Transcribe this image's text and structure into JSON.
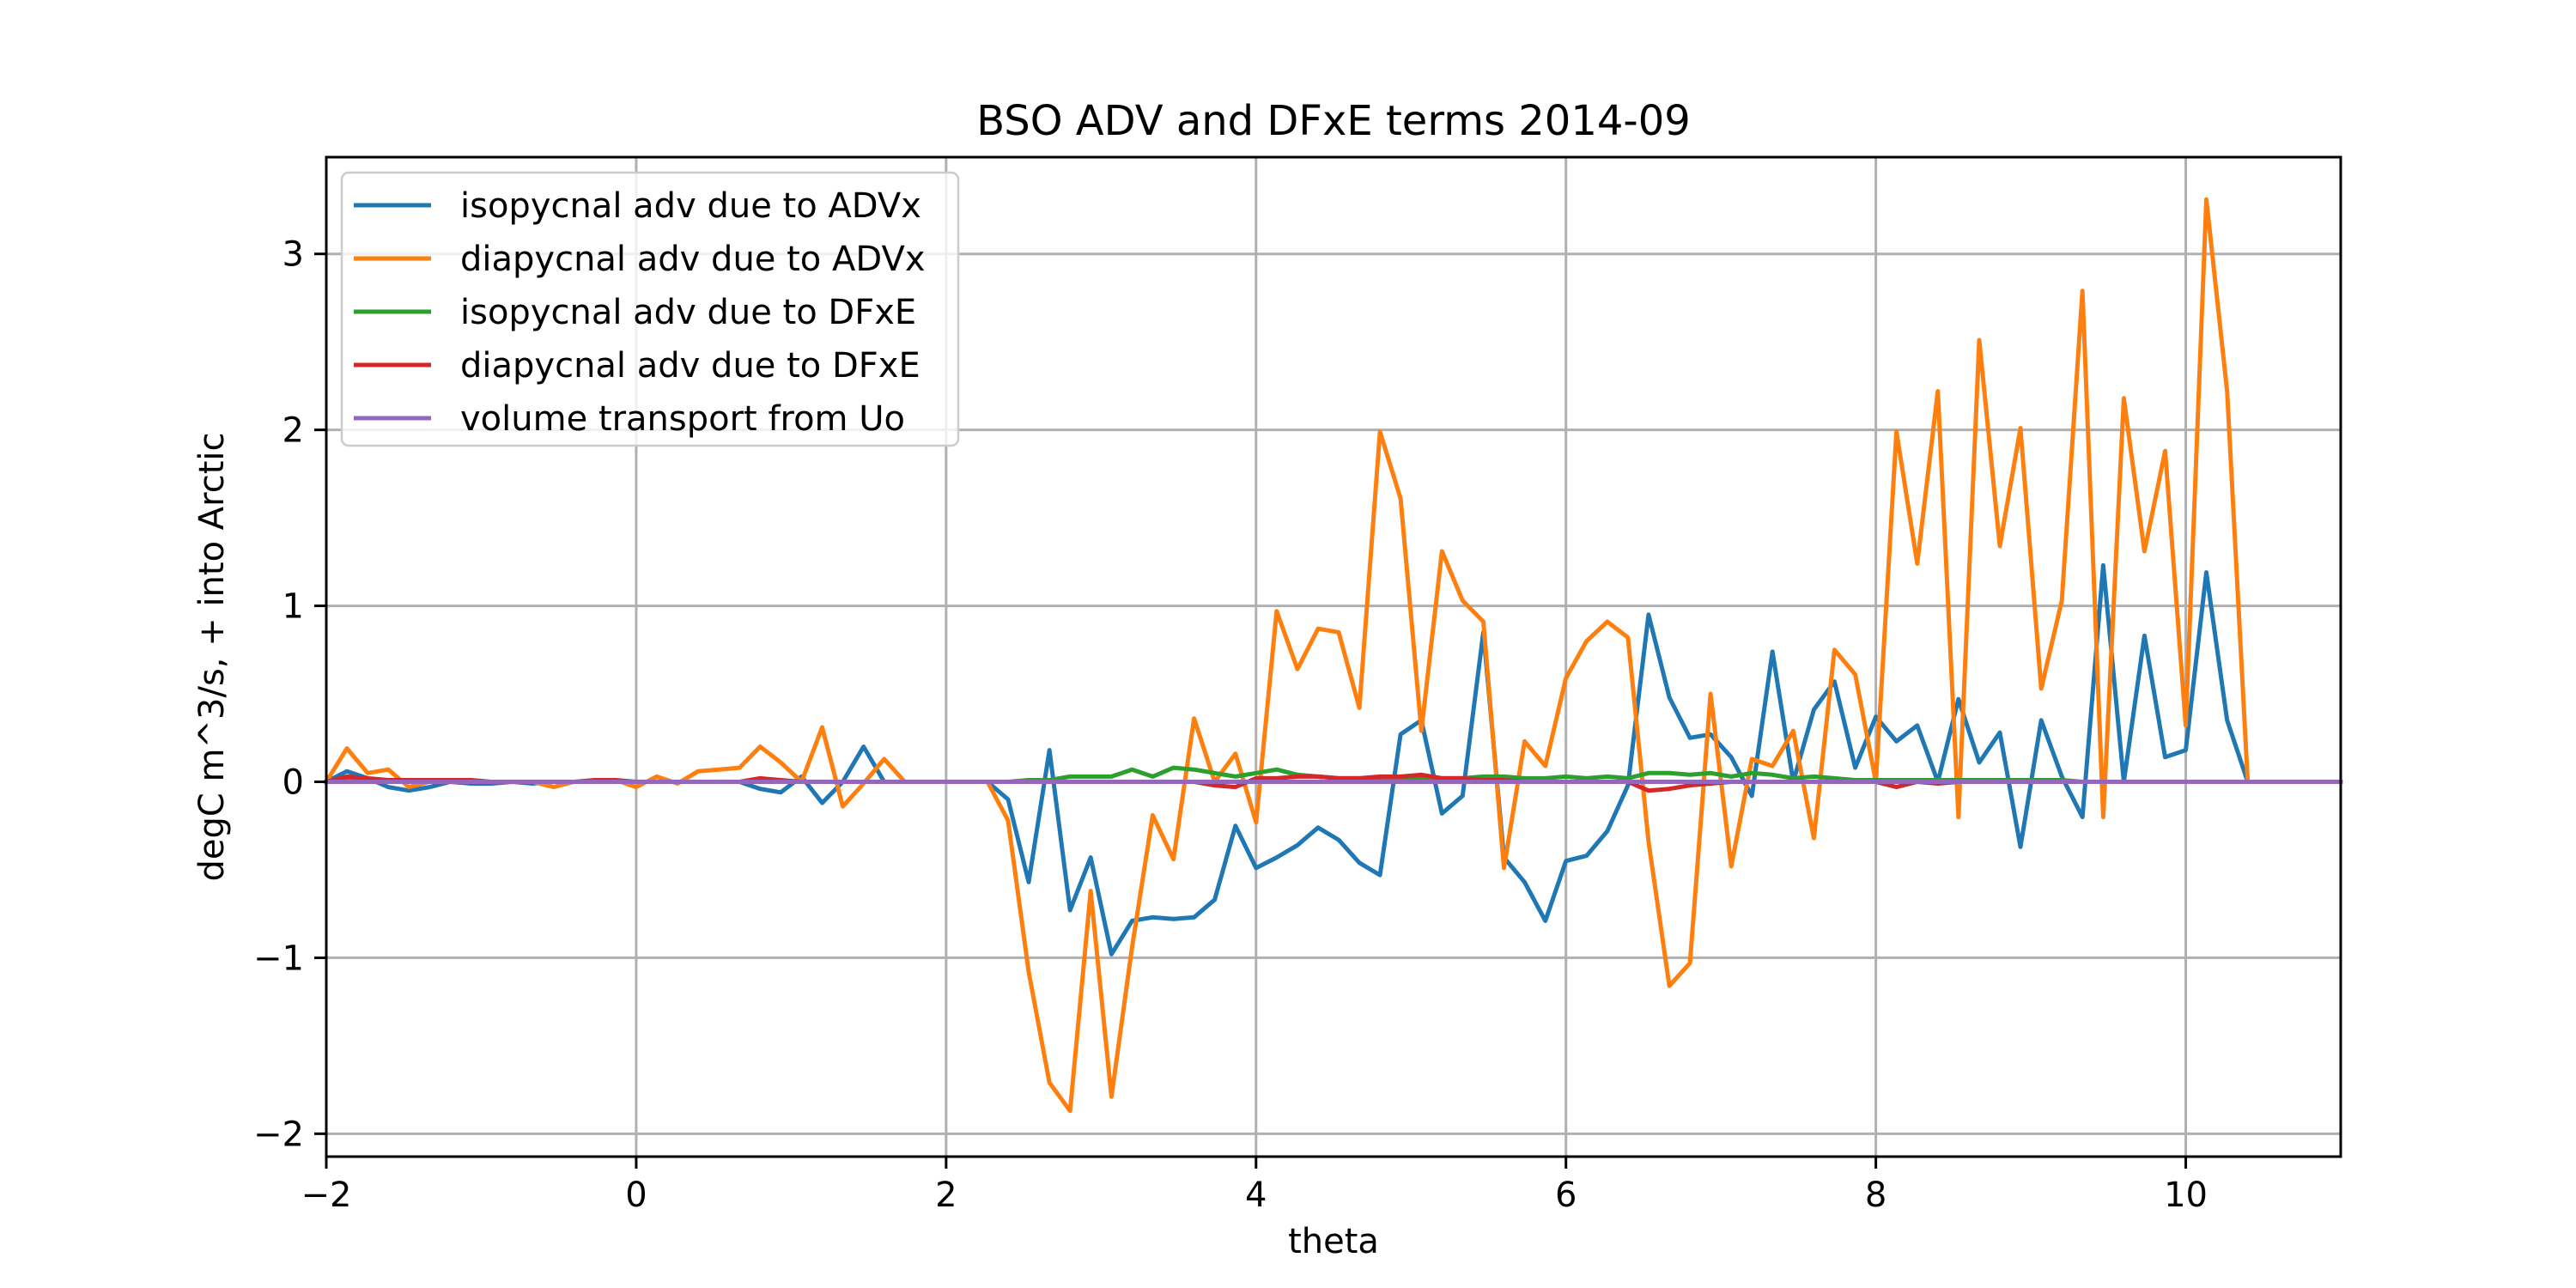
{
  "chart_data": {
    "type": "line",
    "title": "BSO ADV and DFxE terms 2014-09",
    "xlabel": "theta",
    "ylabel": "degC m^3/s, + into Arctic",
    "xlim": [
      -2,
      11
    ],
    "ylim": [
      -2.13,
      3.55
    ],
    "xticks": [
      -2,
      0,
      2,
      4,
      6,
      8,
      10
    ],
    "xtick_labels": [
      "−2",
      "0",
      "2",
      "4",
      "6",
      "8",
      "10"
    ],
    "yticks": [
      -2,
      -1,
      0,
      1,
      2,
      3
    ],
    "ytick_labels": [
      "−2",
      "−1",
      "0",
      "1",
      "2",
      "3"
    ],
    "grid": true,
    "legend_placement": "top-left",
    "x": [
      -2.0,
      -1.867,
      -1.733,
      -1.6,
      -1.467,
      -1.333,
      -1.2,
      -1.067,
      -0.933,
      -0.8,
      -0.667,
      -0.533,
      -0.4,
      -0.267,
      -0.133,
      0.0,
      0.133,
      0.267,
      0.4,
      0.533,
      0.667,
      0.8,
      0.933,
      1.067,
      1.2,
      1.333,
      1.467,
      1.6,
      1.733,
      1.867,
      2.0,
      2.133,
      2.267,
      2.4,
      2.533,
      2.667,
      2.8,
      2.933,
      3.067,
      3.2,
      3.333,
      3.467,
      3.6,
      3.733,
      3.867,
      4.0,
      4.133,
      4.267,
      4.4,
      4.533,
      4.667,
      4.8,
      4.933,
      5.067,
      5.2,
      5.333,
      5.467,
      5.6,
      5.733,
      5.867,
      6.0,
      6.133,
      6.267,
      6.4,
      6.533,
      6.667,
      6.8,
      6.933,
      7.067,
      7.2,
      7.333,
      7.467,
      7.6,
      7.733,
      7.867,
      8.0,
      8.133,
      8.267,
      8.4,
      8.533,
      8.667,
      8.8,
      8.933,
      9.067,
      9.2,
      9.333,
      9.467,
      9.6,
      9.733,
      9.867,
      10.0,
      10.133,
      10.267,
      10.4,
      10.533,
      10.667,
      10.8,
      10.933,
      11.0
    ],
    "series": [
      {
        "name": "isopycnal adv due to ADVx",
        "color": "#1f77b4",
        "values": [
          0.0,
          0.06,
          0.02,
          -0.03,
          -0.05,
          -0.03,
          0.0,
          -0.01,
          -0.01,
          0.0,
          -0.01,
          0.0,
          0.0,
          0.0,
          0.0,
          0.0,
          0.0,
          0.0,
          0.0,
          0.0,
          0.0,
          -0.04,
          -0.06,
          0.03,
          -0.12,
          0.0,
          0.2,
          0.0,
          0.0,
          0.0,
          0.0,
          0.0,
          0.0,
          -0.1,
          -0.57,
          0.18,
          -0.73,
          -0.43,
          -0.98,
          -0.79,
          -0.77,
          -0.78,
          -0.77,
          -0.67,
          -0.25,
          -0.49,
          -0.43,
          -0.36,
          -0.26,
          -0.33,
          -0.46,
          -0.53,
          0.27,
          0.35,
          -0.18,
          -0.08,
          0.85,
          -0.43,
          -0.57,
          -0.79,
          -0.45,
          -0.42,
          -0.28,
          -0.02,
          0.95,
          0.48,
          0.25,
          0.27,
          0.14,
          -0.08,
          0.74,
          0.0,
          0.41,
          0.57,
          0.08,
          0.37,
          0.23,
          0.32,
          0.0,
          0.47,
          0.11,
          0.28,
          -0.37,
          0.35,
          0.03,
          -0.2,
          1.23,
          0.0,
          0.83,
          0.14,
          0.18,
          1.19,
          0.35,
          0.0,
          0.0,
          0.0,
          0.0,
          0.0,
          0.0
        ]
      },
      {
        "name": "diapycnal adv due to ADVx",
        "color": "#ff7f0e",
        "values": [
          0.0,
          0.19,
          0.05,
          0.07,
          -0.03,
          0.0,
          0.0,
          0.0,
          0.0,
          0.0,
          0.0,
          -0.03,
          0.0,
          0.0,
          0.01,
          -0.03,
          0.03,
          -0.01,
          0.06,
          0.07,
          0.08,
          0.2,
          0.11,
          0.0,
          0.31,
          -0.14,
          -0.01,
          0.13,
          0.0,
          0.0,
          0.0,
          0.0,
          0.0,
          -0.22,
          -1.08,
          -1.71,
          -1.87,
          -0.62,
          -1.79,
          -0.94,
          -0.19,
          -0.44,
          0.36,
          0.0,
          0.16,
          -0.23,
          0.97,
          0.64,
          0.87,
          0.85,
          0.42,
          1.99,
          1.61,
          0.29,
          1.31,
          1.03,
          0.91,
          -0.49,
          0.23,
          0.09,
          0.59,
          0.8,
          0.91,
          0.82,
          -0.34,
          -1.16,
          -1.03,
          0.5,
          -0.48,
          0.13,
          0.09,
          0.29,
          -0.32,
          0.75,
          0.61,
          0.0,
          1.99,
          1.24,
          2.22,
          -0.2,
          2.51,
          1.34,
          2.01,
          0.53,
          1.03,
          2.79,
          -0.2,
          2.18,
          1.31,
          1.88,
          0.32,
          3.31,
          2.22,
          0.0,
          0.0,
          0.0,
          0.0,
          0.0,
          0.0
        ]
      },
      {
        "name": "isopycnal adv due to DFxE",
        "color": "#2ca02c",
        "values": [
          0.0,
          0.01,
          0.01,
          0.0,
          0.0,
          0.0,
          0.0,
          0.0,
          0.0,
          0.0,
          0.0,
          0.0,
          0.0,
          0.0,
          0.0,
          0.0,
          0.0,
          0.0,
          0.0,
          0.0,
          0.0,
          0.0,
          0.0,
          0.0,
          0.0,
          0.0,
          0.0,
          0.0,
          0.0,
          0.0,
          0.0,
          0.0,
          0.0,
          0.0,
          0.01,
          0.01,
          0.03,
          0.03,
          0.03,
          0.07,
          0.03,
          0.08,
          0.07,
          0.05,
          0.03,
          0.05,
          0.07,
          0.04,
          0.03,
          0.02,
          0.02,
          0.02,
          0.02,
          0.02,
          0.02,
          0.02,
          0.03,
          0.03,
          0.02,
          0.02,
          0.03,
          0.02,
          0.03,
          0.02,
          0.05,
          0.05,
          0.04,
          0.05,
          0.03,
          0.05,
          0.04,
          0.02,
          0.03,
          0.02,
          0.01,
          0.01,
          0.01,
          0.01,
          0.01,
          0.01,
          0.01,
          0.01,
          0.01,
          0.01,
          0.01,
          0.0,
          0.0,
          0.0,
          0.0,
          0.0,
          0.0,
          0.0,
          0.0,
          0.0,
          0.0,
          0.0,
          0.0,
          0.0,
          0.0
        ]
      },
      {
        "name": "diapycnal adv due to DFxE",
        "color": "#d62728",
        "values": [
          0.0,
          0.03,
          0.02,
          0.01,
          0.01,
          0.01,
          0.01,
          0.01,
          0.0,
          0.0,
          0.0,
          0.0,
          0.0,
          0.01,
          0.01,
          0.0,
          0.0,
          0.0,
          0.0,
          0.0,
          0.0,
          0.02,
          0.01,
          0.0,
          0.0,
          0.0,
          0.0,
          0.0,
          0.0,
          0.0,
          0.0,
          0.0,
          0.0,
          0.0,
          0.0,
          0.0,
          0.0,
          0.0,
          0.0,
          0.0,
          0.0,
          0.0,
          0.0,
          -0.02,
          -0.03,
          0.02,
          0.02,
          0.03,
          0.03,
          0.02,
          0.02,
          0.03,
          0.03,
          0.04,
          0.02,
          0.02,
          0.01,
          0.01,
          0.0,
          0.0,
          0.0,
          0.0,
          0.0,
          0.0,
          -0.05,
          -0.04,
          -0.02,
          -0.01,
          0.0,
          0.0,
          0.0,
          0.0,
          0.0,
          0.0,
          0.0,
          0.0,
          -0.03,
          0.0,
          -0.01,
          0.0,
          0.0,
          0.0,
          0.0,
          0.0,
          0.0,
          0.0,
          0.0,
          0.0,
          0.0,
          0.0,
          0.0,
          0.0,
          0.0,
          0.0,
          0.0,
          0.0,
          0.0,
          0.0,
          0.0
        ]
      },
      {
        "name": "volume transport from Uo",
        "color": "#9467bd",
        "values": [
          0.0,
          0.0,
          0.0,
          0.0,
          0.0,
          0.0,
          0.0,
          0.0,
          0.0,
          0.0,
          0.0,
          0.0,
          0.0,
          0.0,
          0.0,
          0.0,
          0.0,
          0.0,
          0.0,
          0.0,
          0.0,
          0.0,
          0.0,
          0.0,
          0.0,
          0.0,
          0.0,
          0.0,
          0.0,
          0.0,
          0.0,
          0.0,
          0.0,
          0.0,
          0.0,
          0.0,
          0.0,
          0.0,
          0.0,
          0.0,
          0.0,
          0.0,
          0.0,
          0.0,
          0.0,
          0.0,
          0.0,
          0.0,
          0.0,
          0.0,
          0.0,
          0.0,
          0.0,
          0.0,
          0.0,
          0.0,
          0.0,
          0.0,
          0.0,
          0.0,
          0.0,
          0.0,
          0.0,
          0.0,
          0.0,
          0.0,
          0.0,
          0.0,
          0.0,
          0.0,
          0.0,
          0.0,
          0.0,
          0.0,
          0.0,
          0.0,
          0.0,
          0.0,
          0.0,
          0.0,
          0.0,
          0.0,
          0.0,
          0.0,
          0.0,
          0.0,
          0.0,
          0.0,
          0.0,
          0.0,
          0.0,
          0.0,
          0.0,
          0.0,
          0.0,
          0.0,
          0.0,
          0.0,
          0.0
        ]
      }
    ]
  }
}
